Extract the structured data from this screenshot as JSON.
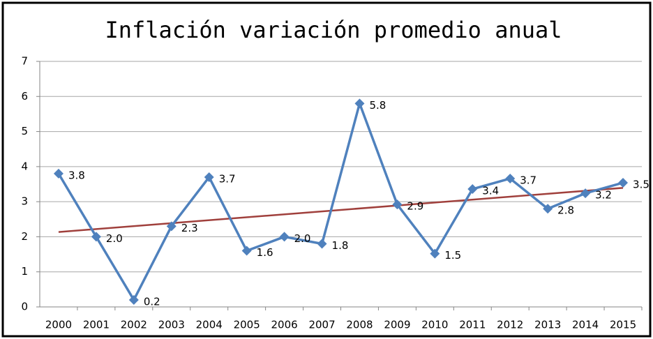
{
  "chart_data": {
    "type": "line",
    "title": "Inflación variación promedio anual",
    "categories": [
      "2000",
      "2001",
      "2002",
      "2003",
      "2004",
      "2005",
      "2006",
      "2007",
      "2008",
      "2009",
      "2010",
      "2011",
      "2012",
      "2013",
      "2014",
      "2015"
    ],
    "series": [
      {
        "name": "Inflación",
        "color": "#4f81bd",
        "values": [
          3.8,
          2.0,
          0.2,
          2.3,
          3.7,
          1.6,
          2.0,
          1.8,
          5.8,
          2.92,
          1.52,
          3.36,
          3.66,
          2.8,
          3.24,
          3.54
        ],
        "value_labels": [
          "3.8",
          "2.0",
          "0.2",
          "2.3",
          "3.7",
          "1.6",
          "2.0",
          "1.8",
          "5.8",
          "2.9",
          "1.5",
          "3.4",
          "3.7",
          "2.8",
          "3.2",
          "3.5"
        ]
      }
    ],
    "ylim": [
      0,
      7
    ],
    "yticks": [
      0,
      1,
      2,
      3,
      4,
      5,
      6,
      7
    ],
    "grid": true,
    "trendline": {
      "type": "linear",
      "color": "#a0403c"
    }
  }
}
